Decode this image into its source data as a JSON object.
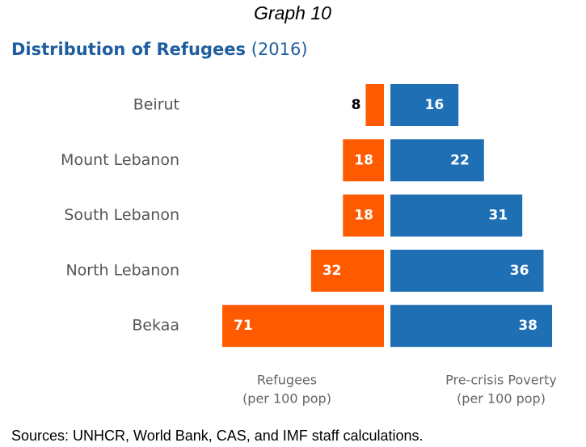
{
  "chart_data": {
    "type": "butterfly",
    "caption": "Graph 10",
    "title": "Distribution of Refugees",
    "subtitle": "(2016)",
    "categories": [
      "Beirut",
      "Mount Lebanon",
      "South Lebanon",
      "North Lebanon",
      "Bekaa"
    ],
    "series": [
      {
        "name": "Refugees",
        "sublabel": "(per 100 pop)",
        "color": "#ff5a00",
        "side": "left",
        "values": [
          8,
          18,
          18,
          32,
          71
        ]
      },
      {
        "name": "Pre-crisis Poverty",
        "sublabel": "(per 100 pop)",
        "color": "#1f6fb5",
        "side": "right",
        "values": [
          16,
          22,
          31,
          36,
          38
        ]
      }
    ],
    "source": "Sources: UNHCR, World Bank, CAS, and IMF staff calculations."
  }
}
